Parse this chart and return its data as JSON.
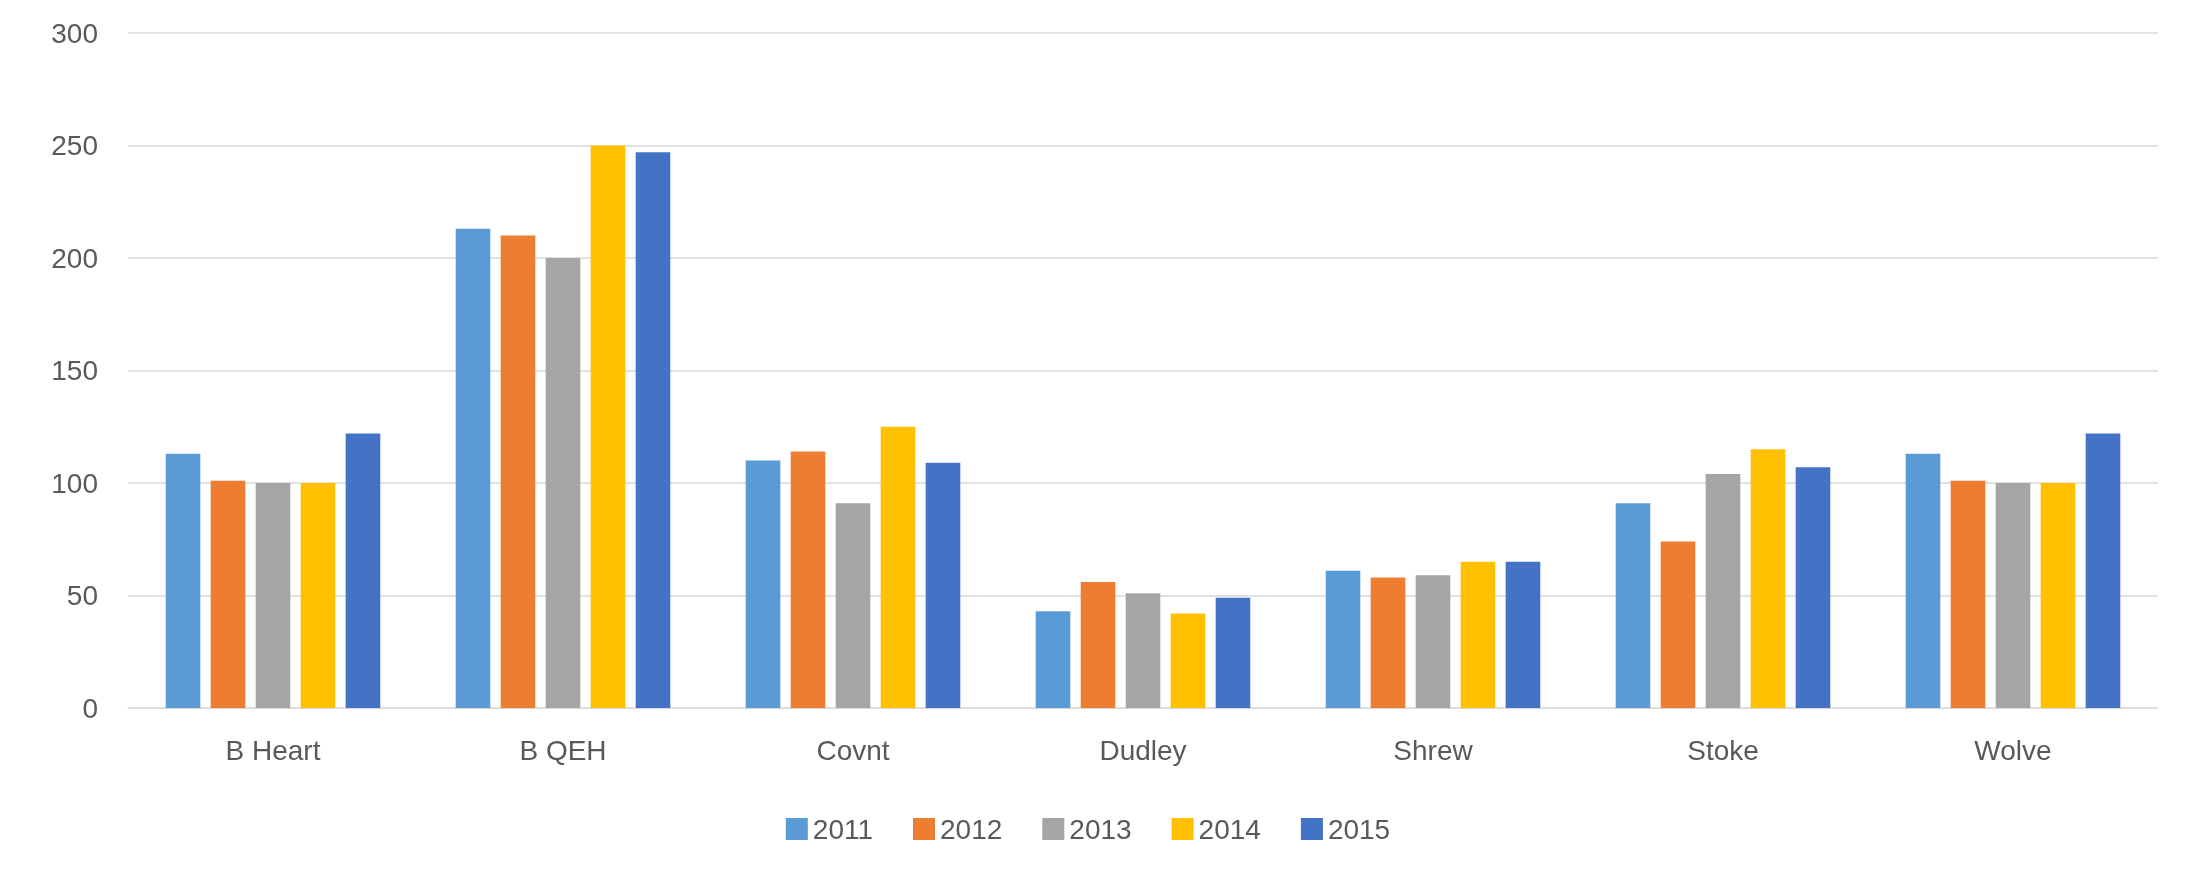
{
  "chart_data": {
    "type": "bar",
    "categories": [
      "B Heart",
      "B QEH",
      "Covnt",
      "Dudley",
      "Shrew",
      "Stoke",
      "Wolve"
    ],
    "series": [
      {
        "name": "2011",
        "color": "#5b9bd5",
        "values": [
          113,
          213,
          110,
          43,
          61,
          91,
          113
        ]
      },
      {
        "name": "2012",
        "color": "#ed7d31",
        "values": [
          101,
          210,
          114,
          56,
          58,
          74,
          101
        ]
      },
      {
        "name": "2013",
        "color": "#a5a5a5",
        "values": [
          100,
          200,
          91,
          51,
          59,
          104,
          100
        ]
      },
      {
        "name": "2014",
        "color": "#ffc000",
        "values": [
          100,
          250,
          125,
          42,
          65,
          115,
          100
        ]
      },
      {
        "name": "2015",
        "color": "#4472c4",
        "values": [
          122,
          247,
          109,
          49,
          65,
          107,
          122
        ]
      }
    ],
    "ylim": [
      0,
      300
    ],
    "yticks": [
      0,
      50,
      100,
      150,
      200,
      250,
      300
    ],
    "grid": "y",
    "legend": "bottom"
  }
}
